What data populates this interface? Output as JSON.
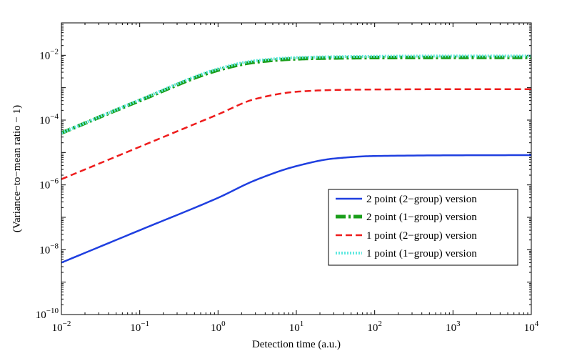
{
  "chart_data": {
    "type": "line",
    "xscale": "log",
    "yscale": "log",
    "xlabel": "Detection time (a.u.)",
    "ylabel": "(Variance−to−mean ratio − 1)",
    "xlim": [
      0.01,
      10000
    ],
    "ylim": [
      1e-10,
      0.1
    ],
    "x_ticks": [
      {
        "value": 0.01,
        "base": "10",
        "exp": "−2"
      },
      {
        "value": 0.1,
        "base": "10",
        "exp": "−1"
      },
      {
        "value": 1,
        "base": "10",
        "exp": "0"
      },
      {
        "value": 10,
        "base": "10",
        "exp": "1"
      },
      {
        "value": 100,
        "base": "10",
        "exp": "2"
      },
      {
        "value": 1000,
        "base": "10",
        "exp": "3"
      },
      {
        "value": 10000,
        "base": "10",
        "exp": "4"
      }
    ],
    "y_ticks": [
      {
        "value": 1e-10,
        "base": "10",
        "exp": "−10"
      },
      {
        "value": 1e-08,
        "base": "10",
        "exp": "−8"
      },
      {
        "value": 1e-06,
        "base": "10",
        "exp": "−6"
      },
      {
        "value": 0.0001,
        "base": "10",
        "exp": "−4"
      },
      {
        "value": 0.01,
        "base": "10",
        "exp": "−2"
      }
    ],
    "legend_position": "lower-right",
    "x": [
      0.01,
      0.1,
      1,
      3,
      10,
      30,
      100,
      1000,
      10000
    ],
    "series": [
      {
        "name": "2 point (2−group) version",
        "color": "#1f3fe0",
        "style": "solid",
        "values": [
          4e-09,
          4e-08,
          4e-07,
          1.4e-06,
          3.8e-06,
          6.5e-06,
          7.8e-06,
          8.2e-06,
          8.3e-06
        ]
      },
      {
        "name": "2 point (1−group) version",
        "color": "#1a9e1a",
        "style": "dashdot",
        "values": [
          4e-05,
          0.0004,
          0.0035,
          0.0062,
          0.0078,
          0.0083,
          0.0085,
          0.0086,
          0.0086
        ]
      },
      {
        "name": "1 point (2−group) version",
        "color": "#ee1c1c",
        "style": "dashed",
        "values": [
          1.5e-06,
          1.5e-05,
          0.00015,
          0.00045,
          0.00075,
          0.00085,
          0.00088,
          0.0009,
          0.0009
        ]
      },
      {
        "name": "1 point (1−group) version",
        "color": "#5fe8e0",
        "style": "dotted",
        "values": [
          4e-05,
          0.00042,
          0.0038,
          0.0068,
          0.0085,
          0.009,
          0.0093,
          0.0095,
          0.0095
        ]
      }
    ]
  }
}
